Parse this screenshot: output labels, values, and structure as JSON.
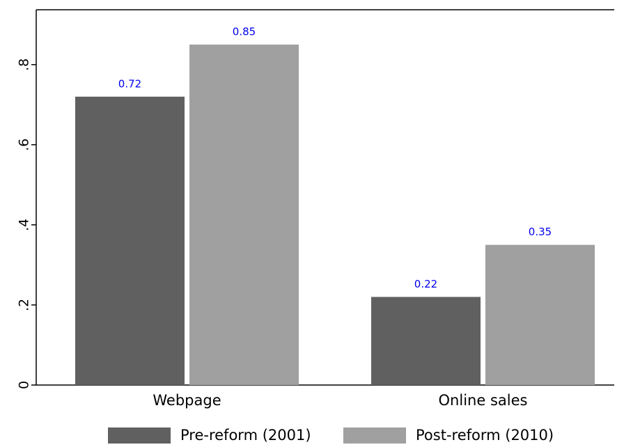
{
  "chart_data": {
    "type": "bar",
    "categories": [
      "Webpage",
      "Online sales"
    ],
    "series": [
      {
        "name": "Pre-reform (2001)",
        "color": "#606060",
        "values": [
          0.72,
          0.22
        ]
      },
      {
        "name": "Post-reform (2010)",
        "color": "#a0a0a0",
        "values": [
          0.85,
          0.35
        ]
      }
    ],
    "value_label_color": "#0000ee",
    "ylim": [
      0,
      0.937
    ],
    "yticks": [
      0,
      {
        "value": 0.2,
        "label": ".2"
      },
      {
        "value": 0.4,
        "label": ".4"
      },
      {
        "value": 0.6,
        "label": ".6"
      },
      {
        "value": 0.8,
        "label": ".8"
      }
    ],
    "legend": "bottom"
  }
}
